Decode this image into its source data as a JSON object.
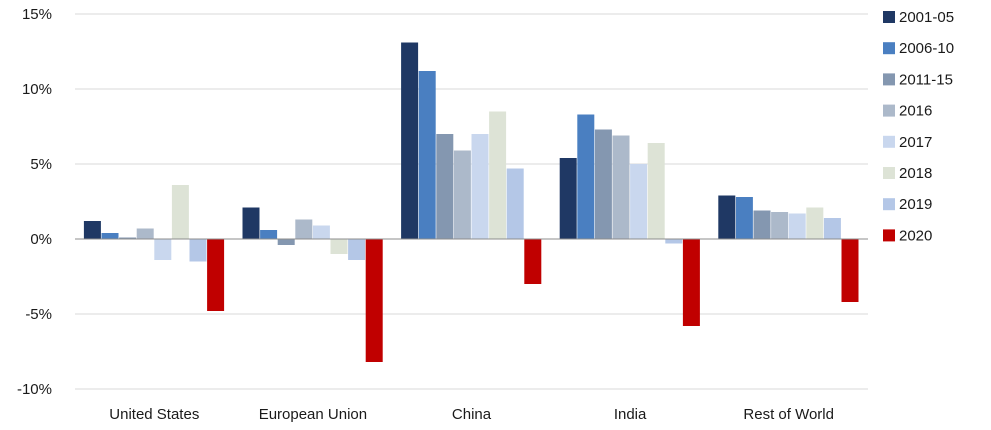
{
  "chart_data": {
    "type": "bar",
    "categories": [
      "United States",
      "European Union",
      "China",
      "India",
      "Rest of World"
    ],
    "series": [
      {
        "name": "2001-05",
        "color": "#1f3864",
        "values": [
          1.2,
          2.1,
          13.1,
          5.4,
          2.9
        ]
      },
      {
        "name": "2006-10",
        "color": "#4a7fc1",
        "values": [
          0.4,
          0.6,
          11.2,
          8.3,
          2.8
        ]
      },
      {
        "name": "2011-15",
        "color": "#8497b0",
        "values": [
          0.1,
          -0.4,
          7.0,
          7.3,
          1.9
        ]
      },
      {
        "name": "2016",
        "color": "#acb9ca",
        "values": [
          0.7,
          1.3,
          5.9,
          6.9,
          1.8
        ]
      },
      {
        "name": "2017",
        "color": "#c9d7ee",
        "values": [
          -1.4,
          0.9,
          7.0,
          5.0,
          1.7
        ]
      },
      {
        "name": "2018",
        "color": "#dde3d6",
        "values": [
          3.6,
          -1.0,
          8.5,
          6.4,
          2.1
        ]
      },
      {
        "name": "2019",
        "color": "#b4c7e7",
        "values": [
          -1.5,
          -1.4,
          4.7,
          -0.3,
          1.4
        ]
      },
      {
        "name": "2020",
        "color": "#c00000",
        "values": [
          -4.8,
          -8.2,
          -3.0,
          -5.8,
          -4.2
        ]
      }
    ],
    "ylim": [
      -10,
      15
    ],
    "yticks": [
      -10,
      -5,
      0,
      5,
      10,
      15
    ],
    "ytick_labels": [
      "-10%",
      "-5%",
      "0%",
      "5%",
      "10%",
      "15%"
    ],
    "grid": true,
    "legend_position": "right"
  }
}
